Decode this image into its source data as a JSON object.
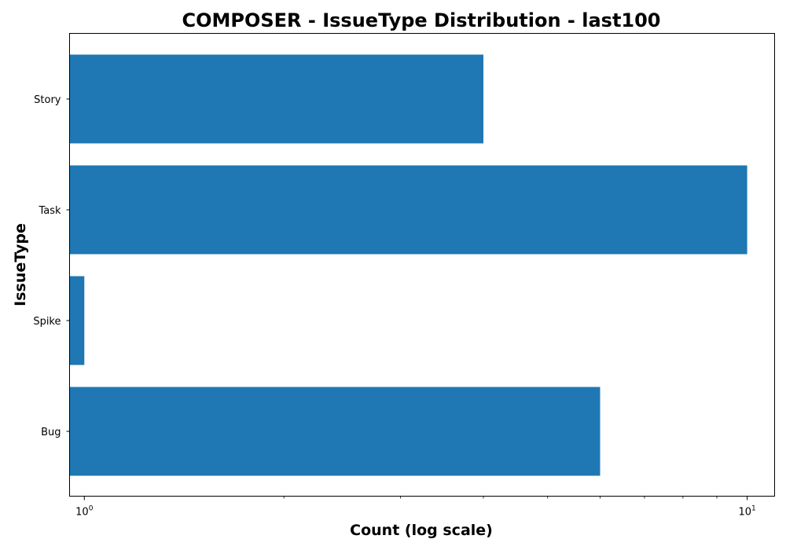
{
  "chart_data": {
    "type": "bar",
    "orientation": "horizontal",
    "title": "COMPOSER - IssueType Distribution - last100",
    "xlabel": "Count (log scale)",
    "ylabel": "IssueType",
    "x_scale": "log",
    "xlim": [
      0.95,
      11.0
    ],
    "categories": [
      "Story",
      "Task",
      "Spike",
      "Bug"
    ],
    "values": [
      4,
      10,
      1,
      6
    ],
    "bar_color": "#1f77b4",
    "x_major_ticks": [
      {
        "value": 1,
        "base": "10",
        "exponent": "0"
      },
      {
        "value": 10,
        "base": "10",
        "exponent": "1"
      }
    ],
    "x_minor_ticks": [
      2,
      3,
      4,
      5,
      6,
      7,
      8,
      9
    ],
    "grid": false,
    "legend": "none"
  }
}
